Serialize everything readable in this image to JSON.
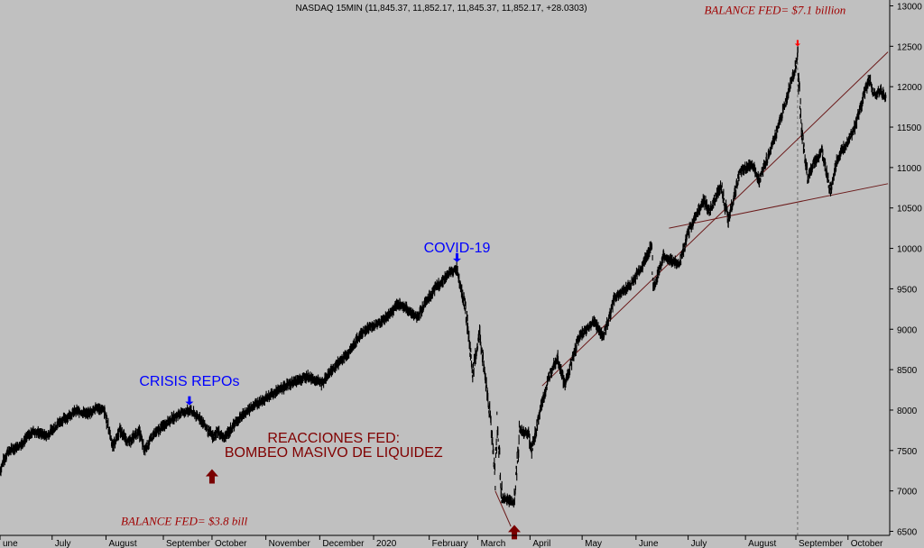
{
  "header": "NASDAQ 15MIN (11,845.37, 11,852.17, 11,845.37, 11,852.17, +28.0303)",
  "chart_data": {
    "type": "line",
    "x_start": "2019-06-01",
    "x_end": "2020-10-25",
    "ylim": [
      6450,
      13050
    ],
    "y_ticks": [
      6500,
      7000,
      7500,
      8000,
      8500,
      9000,
      9500,
      10000,
      10500,
      11000,
      11500,
      12000,
      12500,
      13000
    ],
    "x_tick_labels": [
      {
        "date": "2019-06-01",
        "label": "une"
      },
      {
        "date": "2019-07-01",
        "label": "July"
      },
      {
        "date": "2019-08-01",
        "label": "August"
      },
      {
        "date": "2019-09-03",
        "label": "September"
      },
      {
        "date": "2019-10-01",
        "label": "October"
      },
      {
        "date": "2019-11-01",
        "label": "November"
      },
      {
        "date": "2019-12-02",
        "label": "December"
      },
      {
        "date": "2020-01-02",
        "label": "2020"
      },
      {
        "date": "2020-02-03",
        "label": "February"
      },
      {
        "date": "2020-03-02",
        "label": "March"
      },
      {
        "date": "2020-04-01",
        "label": "April"
      },
      {
        "date": "2020-05-01",
        "label": "May"
      },
      {
        "date": "2020-06-01",
        "label": "June"
      },
      {
        "date": "2020-07-01",
        "label": "July"
      },
      {
        "date": "2020-08-03",
        "label": "August"
      },
      {
        "date": "2020-09-01",
        "label": "September"
      },
      {
        "date": "2020-10-01",
        "label": "October"
      }
    ],
    "series": [
      {
        "points": [
          [
            "2019-06-01",
            7250
          ],
          [
            "2019-06-05",
            7480
          ],
          [
            "2019-06-12",
            7560
          ],
          [
            "2019-06-20",
            7740
          ],
          [
            "2019-06-28",
            7680
          ],
          [
            "2019-07-05",
            7850
          ],
          [
            "2019-07-15",
            7990
          ],
          [
            "2019-07-22",
            7950
          ],
          [
            "2019-07-26",
            8030
          ],
          [
            "2019-07-31",
            7990
          ],
          [
            "2019-08-05",
            7560
          ],
          [
            "2019-08-09",
            7750
          ],
          [
            "2019-08-14",
            7600
          ],
          [
            "2019-08-20",
            7740
          ],
          [
            "2019-08-23",
            7500
          ],
          [
            "2019-08-28",
            7680
          ],
          [
            "2019-09-05",
            7850
          ],
          [
            "2019-09-12",
            7950
          ],
          [
            "2019-09-18",
            8000
          ],
          [
            "2019-09-24",
            7900
          ],
          [
            "2019-10-02",
            7650
          ],
          [
            "2019-10-04",
            7740
          ],
          [
            "2019-10-08",
            7650
          ],
          [
            "2019-10-15",
            7860
          ],
          [
            "2019-10-25",
            8060
          ],
          [
            "2019-11-05",
            8200
          ],
          [
            "2019-11-15",
            8330
          ],
          [
            "2019-11-25",
            8420
          ],
          [
            "2019-12-03",
            8330
          ],
          [
            "2019-12-10",
            8520
          ],
          [
            "2019-12-20",
            8750
          ],
          [
            "2019-12-27",
            8980
          ],
          [
            "2020-01-07",
            9100
          ],
          [
            "2020-01-17",
            9320
          ],
          [
            "2020-01-27",
            9150
          ],
          [
            "2020-01-31",
            9300
          ],
          [
            "2020-02-07",
            9520
          ],
          [
            "2020-02-14",
            9680
          ],
          [
            "2020-02-19",
            9750
          ],
          [
            "2020-02-24",
            9250
          ],
          [
            "2020-02-28",
            8450
          ],
          [
            "2020-03-03",
            8950
          ],
          [
            "2020-03-09",
            7950
          ],
          [
            "2020-03-12",
            7200
          ],
          [
            "2020-03-13",
            7850
          ],
          [
            "2020-03-16",
            6900
          ],
          [
            "2020-03-20",
            6880
          ],
          [
            "2020-03-23",
            6850
          ],
          [
            "2020-03-26",
            7750
          ],
          [
            "2020-03-31",
            7700
          ],
          [
            "2020-04-02",
            7500
          ],
          [
            "2020-04-08",
            8100
          ],
          [
            "2020-04-14",
            8550
          ],
          [
            "2020-04-17",
            8650
          ],
          [
            "2020-04-21",
            8300
          ],
          [
            "2020-04-29",
            8900
          ],
          [
            "2020-05-08",
            9100
          ],
          [
            "2020-05-13",
            8900
          ],
          [
            "2020-05-20",
            9400
          ],
          [
            "2020-05-29",
            9550
          ],
          [
            "2020-06-05",
            9800
          ],
          [
            "2020-06-10",
            10050
          ],
          [
            "2020-06-11",
            9500
          ],
          [
            "2020-06-17",
            9900
          ],
          [
            "2020-06-26",
            9800
          ],
          [
            "2020-07-02",
            10250
          ],
          [
            "2020-07-10",
            10600
          ],
          [
            "2020-07-13",
            10450
          ],
          [
            "2020-07-20",
            10780
          ],
          [
            "2020-07-24",
            10350
          ],
          [
            "2020-07-31",
            10950
          ],
          [
            "2020-08-07",
            11050
          ],
          [
            "2020-08-11",
            10850
          ],
          [
            "2020-08-18",
            11250
          ],
          [
            "2020-08-26",
            11800
          ],
          [
            "2020-09-02",
            12350
          ],
          [
            "2020-09-04",
            11500
          ],
          [
            "2020-09-08",
            10850
          ],
          [
            "2020-09-11",
            11050
          ],
          [
            "2020-09-16",
            11200
          ],
          [
            "2020-09-21",
            10700
          ],
          [
            "2020-09-25",
            11100
          ],
          [
            "2020-09-30",
            11300
          ],
          [
            "2020-10-05",
            11500
          ],
          [
            "2020-10-09",
            11800
          ],
          [
            "2020-10-13",
            12100
          ],
          [
            "2020-10-16",
            11900
          ],
          [
            "2020-10-20",
            11950
          ],
          [
            "2020-10-23",
            11850
          ]
        ]
      }
    ],
    "trendlines": [
      {
        "from": [
          "2020-04-08",
          8300
        ],
        "to": [
          "2020-10-24",
          12430
        ]
      },
      {
        "from": [
          "2020-06-20",
          10250
        ],
        "to": [
          "2020-10-24",
          10800
        ]
      },
      {
        "from": [
          "2020-03-12",
          7000
        ],
        "to": [
          "2020-03-21",
          6560
        ]
      }
    ],
    "vline_date": "2020-09-02",
    "annotations": {
      "covid": {
        "text": "COVID-19",
        "date": "2020-02-19",
        "value": 9950
      },
      "repo": {
        "text": "CRISIS REPOs",
        "date": "2019-09-18",
        "value": 8300
      },
      "fed_reaction_1": {
        "text": "REACCIONES  FED:",
        "date": "2019-12-10",
        "value": 7600
      },
      "fed_reaction_2": {
        "text": "BOMBEO MASIVO DE LIQUIDEZ",
        "date": "2019-12-10",
        "value": 7420
      },
      "fed_high": {
        "text": "BALANCE FED= $7.1 billion",
        "date": "2020-08-20",
        "value": 12900
      },
      "fed_low": {
        "text": "BALANCE FED= $3.8 bill",
        "date": "2019-09-15",
        "value": 6580
      }
    },
    "arrows": [
      {
        "kind": "down-blue",
        "date": "2020-02-19",
        "value": 9830
      },
      {
        "kind": "down-blue",
        "date": "2019-09-18",
        "value": 8060
      },
      {
        "kind": "up-maroon",
        "date": "2019-10-01",
        "value": 7270
      },
      {
        "kind": "up-maroon",
        "date": "2020-03-23",
        "value": 6580
      },
      {
        "kind": "down-red",
        "date": "2020-09-02",
        "value": 12500
      }
    ]
  }
}
